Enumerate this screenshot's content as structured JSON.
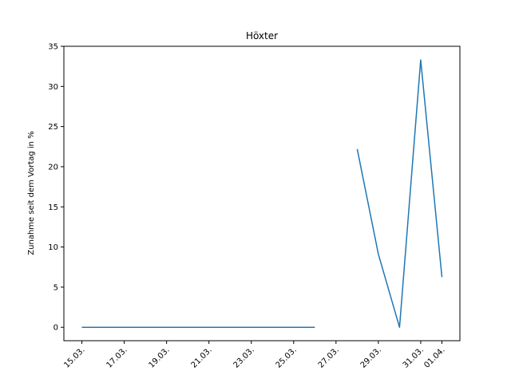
{
  "chart_data": {
    "type": "line",
    "title": "Höxter",
    "xlabel": "",
    "ylabel": "Zunahme seit dem Vortag in %",
    "x_tick_labels": [
      "15.03.",
      "17.03.",
      "19.03.",
      "21.03.",
      "23.03.",
      "25.03.",
      "27.03.",
      "29.03.",
      "31.03.",
      "01.04."
    ],
    "y_tick_labels": [
      "0",
      "5",
      "10",
      "15",
      "20",
      "25",
      "30",
      "35"
    ],
    "xlim": [
      "14.03.",
      "01.04."
    ],
    "ylim": [
      -1.67,
      35
    ],
    "grid": false,
    "series": [
      {
        "color": "#1f77b4",
        "x": [
          "15.03.",
          "16.03.",
          "17.03.",
          "18.03.",
          "19.03.",
          "20.03.",
          "21.03.",
          "22.03.",
          "23.03.",
          "24.03.",
          "25.03.",
          "26.03.",
          "27.03.",
          "28.03.",
          "29.03.",
          "30.03.",
          "31.03.",
          "01.04."
        ],
        "values": [
          0,
          0,
          0,
          0,
          0,
          0,
          0,
          0,
          0,
          0,
          0,
          0,
          null,
          22.2,
          9.1,
          0,
          33.3,
          6.25
        ]
      }
    ]
  }
}
